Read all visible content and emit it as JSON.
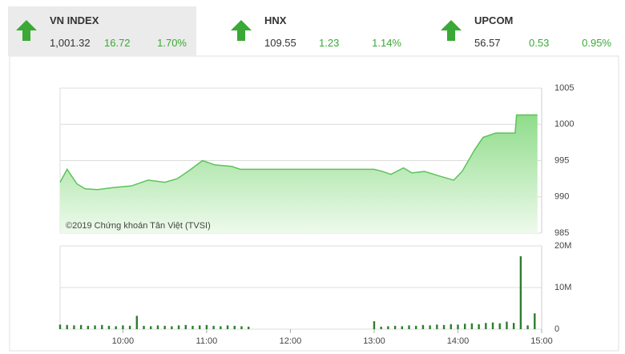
{
  "indices": [
    {
      "name": "VN INDEX",
      "value": "1,001.32",
      "change": "16.72",
      "percent": "1.70%"
    },
    {
      "name": "HNX",
      "value": "109.55",
      "change": "1.23",
      "percent": "1.14%"
    },
    {
      "name": "UPCOM",
      "value": "56.57",
      "change": "0.53",
      "percent": "0.95%"
    }
  ],
  "chart_data": [
    {
      "type": "area",
      "annotation": "©2019 Chứng khoán Tân Việt (TVSI)",
      "color": "#5cc45a",
      "x": [
        555,
        560,
        567,
        573,
        582,
        594,
        606,
        618,
        630,
        639,
        648,
        657,
        666,
        678,
        684,
        780,
        786,
        792,
        801,
        807,
        816,
        828,
        837,
        843,
        852,
        858,
        867,
        881,
        882,
        897
      ],
      "values": [
        992,
        993.8,
        991.8,
        991.1,
        991,
        991.3,
        991.5,
        992.3,
        992,
        992.5,
        993.7,
        995,
        994.4,
        994.2,
        993.8,
        993.8,
        993.5,
        993.1,
        994,
        993.3,
        993.5,
        992.8,
        992.3,
        993.5,
        996.5,
        998.2,
        998.8,
        998.8,
        1001.3,
        1001.3
      ],
      "xlim": [
        555,
        900
      ],
      "ylim": [
        985,
        1005
      ],
      "yticks": [
        985,
        990,
        995,
        1000,
        1005
      ],
      "grid": true
    },
    {
      "type": "bar",
      "color": "#2e7d2e",
      "x": [
        555,
        560,
        565,
        570,
        575,
        580,
        585,
        590,
        595,
        600,
        605,
        610,
        615,
        620,
        625,
        630,
        635,
        640,
        645,
        650,
        655,
        660,
        665,
        670,
        675,
        680,
        685,
        690,
        780,
        785,
        790,
        795,
        800,
        805,
        810,
        815,
        820,
        825,
        830,
        835,
        840,
        845,
        850,
        855,
        860,
        865,
        870,
        875,
        880,
        885,
        890,
        895
      ],
      "values": [
        1100000,
        1000000,
        900000,
        1000000,
        800000,
        900000,
        1000000,
        800000,
        700000,
        900000,
        800000,
        3200000,
        800000,
        700000,
        900000,
        800000,
        700000,
        900000,
        1000000,
        800000,
        900000,
        1000000,
        800000,
        700000,
        900000,
        800000,
        700000,
        600000,
        1900000,
        600000,
        700000,
        800000,
        700000,
        900000,
        800000,
        1000000,
        900000,
        1100000,
        1000000,
        1200000,
        1100000,
        1300000,
        1400000,
        1200000,
        1500000,
        1600000,
        1400000,
        1800000,
        1500000,
        17500000,
        900000,
        3800000
      ],
      "xlim": [
        555,
        900
      ],
      "ylim": [
        0,
        20000000
      ],
      "yticks": [
        0,
        {
          "value": 10000000,
          "label": "10M"
        },
        {
          "value": 20000000,
          "label": "20M"
        }
      ],
      "xticks": [
        {
          "value": 600,
          "label": "10:00"
        },
        {
          "value": 660,
          "label": "11:00"
        },
        {
          "value": 720,
          "label": "12:00"
        },
        {
          "value": 780,
          "label": "13:00"
        },
        {
          "value": 840,
          "label": "14:00"
        },
        {
          "value": 900,
          "label": "15:00"
        }
      ],
      "grid": true
    }
  ]
}
